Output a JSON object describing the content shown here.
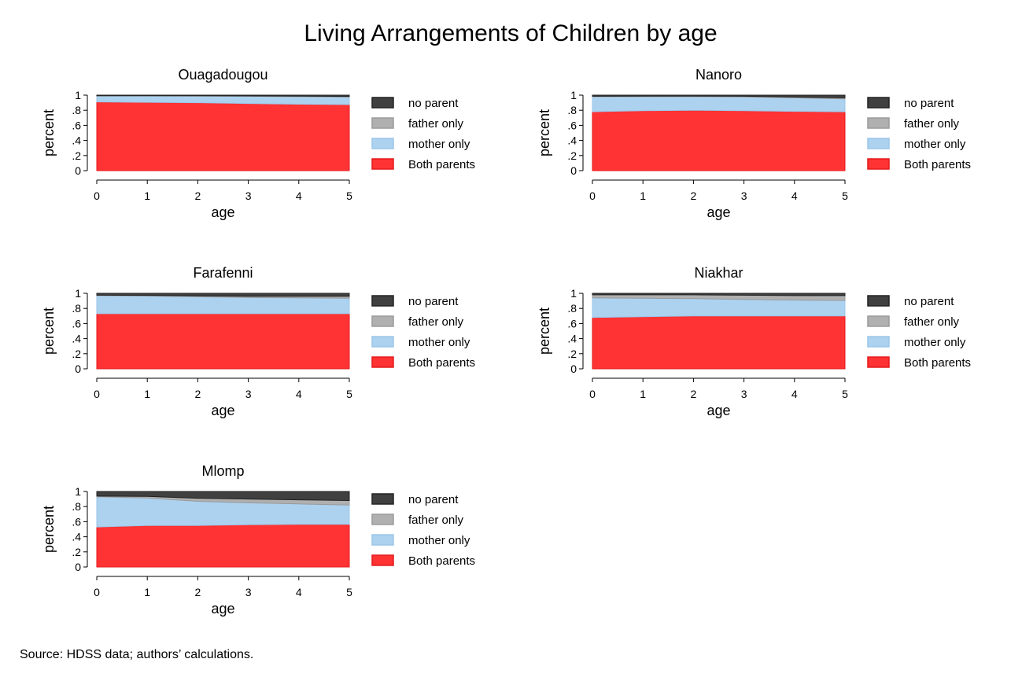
{
  "title": "Living Arrangements of Children by age",
  "source": "Source: HDSS data; authors’ calculations.",
  "colors": {
    "no_parent": "#404040",
    "father_only": "#b0b0b0",
    "mother_only": "#acd2f0",
    "both_parents": "#ff3333",
    "axis": "#000000",
    "grid_dot": "#bbbbbb"
  },
  "chart_data": [
    {
      "type": "area",
      "stacked": true,
      "title": "Ouagadougou",
      "xlabel": "age",
      "ylabel": "percent",
      "x": [
        0,
        1,
        2,
        3,
        4,
        5
      ],
      "xlim": [
        0,
        5
      ],
      "ylim": [
        0,
        1
      ],
      "xticks": [
        "0",
        "1",
        "2",
        "3",
        "4",
        "5"
      ],
      "yticks": [
        "0",
        ".2",
        ".4",
        ".6",
        ".8",
        "1"
      ],
      "legend": "right",
      "series": [
        {
          "name": "Both parents",
          "values": [
            0.91,
            0.905,
            0.9,
            0.89,
            0.88,
            0.875
          ]
        },
        {
          "name": "mother only",
          "values": [
            0.08,
            0.085,
            0.088,
            0.095,
            0.1,
            0.1
          ]
        },
        {
          "name": "father only",
          "values": [
            0.002,
            0.003,
            0.004,
            0.005,
            0.007,
            0.008
          ]
        },
        {
          "name": "no parent",
          "values": [
            0.008,
            0.007,
            0.008,
            0.01,
            0.013,
            0.017
          ]
        }
      ]
    },
    {
      "type": "area",
      "stacked": true,
      "title": "Nanoro",
      "xlabel": "age",
      "ylabel": "percent",
      "x": [
        0,
        1,
        2,
        3,
        4,
        5
      ],
      "xlim": [
        0,
        5
      ],
      "ylim": [
        0,
        1
      ],
      "xticks": [
        "0",
        "1",
        "2",
        "3",
        "4",
        "5"
      ],
      "yticks": [
        "0",
        ".2",
        ".4",
        ".6",
        ".8",
        "1"
      ],
      "legend": "right",
      "series": [
        {
          "name": "Both parents",
          "values": [
            0.78,
            0.795,
            0.8,
            0.795,
            0.785,
            0.78
          ]
        },
        {
          "name": "mother only",
          "values": [
            0.2,
            0.185,
            0.18,
            0.182,
            0.18,
            0.17
          ]
        },
        {
          "name": "father only",
          "values": [
            0.005,
            0.006,
            0.007,
            0.008,
            0.01,
            0.015
          ]
        },
        {
          "name": "no parent",
          "values": [
            0.015,
            0.014,
            0.013,
            0.015,
            0.025,
            0.035
          ]
        }
      ]
    },
    {
      "type": "area",
      "stacked": true,
      "title": "Farafenni",
      "xlabel": "age",
      "ylabel": "percent",
      "x": [
        0,
        1,
        2,
        3,
        4,
        5
      ],
      "xlim": [
        0,
        5
      ],
      "ylim": [
        0,
        1
      ],
      "xticks": [
        "0",
        "1",
        "2",
        "3",
        "4",
        "5"
      ],
      "yticks": [
        "0",
        ".2",
        ".4",
        ".6",
        ".8",
        "1"
      ],
      "legend": "right",
      "series": [
        {
          "name": "Both parents",
          "values": [
            0.73,
            0.73,
            0.73,
            0.73,
            0.73,
            0.73
          ]
        },
        {
          "name": "mother only",
          "values": [
            0.24,
            0.235,
            0.225,
            0.215,
            0.21,
            0.205
          ]
        },
        {
          "name": "father only",
          "values": [
            0.005,
            0.008,
            0.012,
            0.015,
            0.02,
            0.025
          ]
        },
        {
          "name": "no parent",
          "values": [
            0.025,
            0.027,
            0.033,
            0.04,
            0.04,
            0.04
          ]
        }
      ]
    },
    {
      "type": "area",
      "stacked": true,
      "title": "Niakhar",
      "xlabel": "age",
      "ylabel": "percent",
      "x": [
        0,
        1,
        2,
        3,
        4,
        5
      ],
      "xlim": [
        0,
        5
      ],
      "ylim": [
        0,
        1
      ],
      "xticks": [
        "0",
        "1",
        "2",
        "3",
        "4",
        "5"
      ],
      "yticks": [
        "0",
        ".2",
        ".4",
        ".6",
        ".8",
        "1"
      ],
      "legend": "right",
      "series": [
        {
          "name": "Both parents",
          "values": [
            0.68,
            0.69,
            0.7,
            0.7,
            0.7,
            0.7
          ]
        },
        {
          "name": "mother only",
          "values": [
            0.26,
            0.245,
            0.23,
            0.22,
            0.21,
            0.205
          ]
        },
        {
          "name": "father only",
          "values": [
            0.04,
            0.045,
            0.05,
            0.055,
            0.06,
            0.065
          ]
        },
        {
          "name": "no parent",
          "values": [
            0.02,
            0.02,
            0.02,
            0.025,
            0.03,
            0.03
          ]
        }
      ]
    },
    {
      "type": "area",
      "stacked": true,
      "title": "Mlomp",
      "xlabel": "age",
      "ylabel": "percent",
      "x": [
        0,
        1,
        2,
        3,
        4,
        5
      ],
      "xlim": [
        0,
        5
      ],
      "ylim": [
        0,
        1
      ],
      "xticks": [
        "0",
        "1",
        "2",
        "3",
        "4",
        "5"
      ],
      "yticks": [
        "0",
        ".2",
        ".4",
        ".6",
        ".8",
        "1"
      ],
      "legend": "right",
      "series": [
        {
          "name": "Both parents",
          "values": [
            0.53,
            0.55,
            0.55,
            0.56,
            0.565,
            0.565
          ]
        },
        {
          "name": "mother only",
          "values": [
            0.4,
            0.365,
            0.32,
            0.29,
            0.27,
            0.255
          ]
        },
        {
          "name": "father only",
          "values": [
            0.01,
            0.02,
            0.04,
            0.05,
            0.055,
            0.06
          ]
        },
        {
          "name": "no parent",
          "values": [
            0.06,
            0.065,
            0.09,
            0.1,
            0.11,
            0.12
          ]
        }
      ]
    }
  ]
}
